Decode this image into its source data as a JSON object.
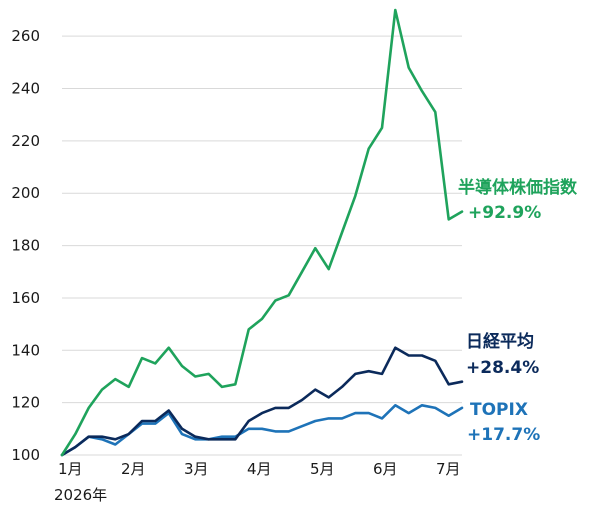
{
  "chart_data": {
    "type": "line",
    "x_labels": [
      "1月",
      "2月",
      "3月",
      "4月",
      "5月",
      "6月",
      "7月"
    ],
    "year_label": "2026年",
    "ylim": [
      100,
      270
    ],
    "y_ticks": [
      100,
      120,
      140,
      160,
      180,
      200,
      220,
      240,
      260
    ],
    "grid": true,
    "series": [
      {
        "name": "半導体株価指数",
        "change": "+92.9%",
        "color": "#1fa35c",
        "values": [
          100,
          108,
          118,
          125,
          129,
          126,
          137,
          135,
          141,
          134,
          130,
          131,
          126,
          127,
          148,
          152,
          159,
          161,
          170,
          179,
          171,
          185,
          199,
          217,
          225,
          270,
          248,
          239,
          231,
          190,
          193
        ]
      },
      {
        "name": "日経平均",
        "change": "+28.4%",
        "color": "#0b2a5b",
        "values": [
          100,
          103,
          107,
          107,
          106,
          108,
          113,
          113,
          117,
          110,
          107,
          106,
          106,
          106,
          113,
          116,
          118,
          118,
          121,
          125,
          122,
          126,
          131,
          132,
          131,
          141,
          138,
          138,
          136,
          127,
          128
        ]
      },
      {
        "name": "TOPIX",
        "change": "+17.7%",
        "color": "#1e73b8",
        "values": [
          100,
          103,
          107,
          106,
          104,
          108,
          112,
          112,
          116,
          108,
          106,
          106,
          107,
          107,
          110,
          110,
          109,
          109,
          111,
          113,
          114,
          114,
          116,
          116,
          114,
          119,
          116,
          119,
          118,
          115,
          118
        ]
      }
    ]
  }
}
